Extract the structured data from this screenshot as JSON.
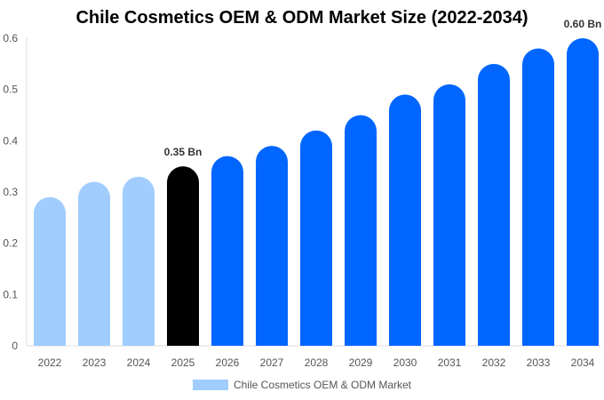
{
  "chart_data": {
    "type": "bar",
    "title": "Chile Cosmetics OEM & ODM Market Size (2022-2034)",
    "categories": [
      "2022",
      "2023",
      "2024",
      "2025",
      "2026",
      "2027",
      "2028",
      "2029",
      "2030",
      "2031",
      "2032",
      "2033",
      "2034"
    ],
    "series": [
      {
        "name": "Chile Cosmetics OEM & ODM Market",
        "values": [
          0.29,
          0.32,
          0.33,
          0.35,
          0.37,
          0.39,
          0.42,
          0.45,
          0.49,
          0.51,
          0.55,
          0.58,
          0.6
        ]
      }
    ],
    "data_labels": {
      "2025": "0.35 Bn",
      "2034": "0.60 Bn"
    },
    "ylim": [
      0,
      0.6
    ],
    "yticks": [
      "0",
      "0.1",
      "0.2",
      "0.3",
      "0.4",
      "0.5",
      "0.6"
    ],
    "xlabel": "",
    "ylabel": "",
    "grid": false,
    "legend_position": "bottom",
    "colors": {
      "historical": "#a0cdfd",
      "base_year": "#000000",
      "forecast": "#0066ff"
    }
  }
}
